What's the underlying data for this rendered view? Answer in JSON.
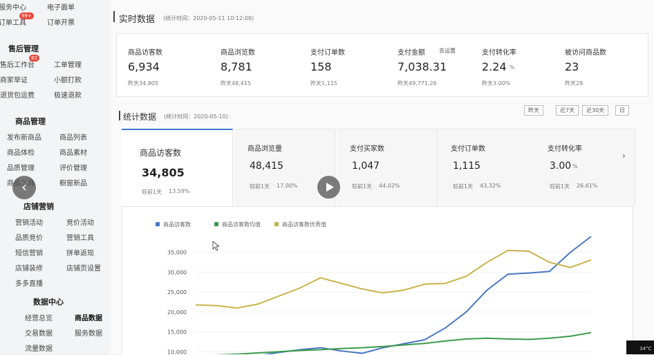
{
  "sidebar": {
    "top": [
      {
        "label": "服务中心"
      },
      {
        "label": "电子面单"
      },
      {
        "label": "订单工具",
        "badge": "99+"
      },
      {
        "label": "订单开票"
      }
    ],
    "sections": [
      {
        "title": "售后管理",
        "items": [
          {
            "label": "售后工作台",
            "badge": "82"
          },
          {
            "label": "工单管理"
          },
          {
            "label": "商家举证"
          },
          {
            "label": "小额打款"
          },
          {
            "label": "退货包运费"
          },
          {
            "label": "极速退款"
          }
        ]
      },
      {
        "title": "商品管理",
        "items": [
          {
            "label": "发布新商品"
          },
          {
            "label": "商品列表"
          },
          {
            "label": "商品体检"
          },
          {
            "label": "商品素材"
          },
          {
            "label": "品质管理"
          },
          {
            "label": "评价管理"
          },
          {
            "label": "商品工具"
          },
          {
            "label": "橱窗新品"
          }
        ]
      },
      {
        "title": "店铺营销",
        "items": [
          {
            "label": "营销活动"
          },
          {
            "label": "竞价活动"
          },
          {
            "label": "品质竞价"
          },
          {
            "label": "营销工具"
          },
          {
            "label": "短信营销"
          },
          {
            "label": "拼单返现"
          },
          {
            "label": "店铺装修"
          },
          {
            "label": "店铺页设置"
          },
          {
            "label": "多多直播"
          }
        ]
      },
      {
        "title": "数据中心",
        "items": [
          {
            "label": "经营总览"
          },
          {
            "label": "商品数据"
          },
          {
            "label": "交易数据"
          },
          {
            "label": "服务数据"
          },
          {
            "label": "流量数据"
          }
        ]
      }
    ]
  },
  "realtime": {
    "title": "实时数据",
    "time": "(统计时间：2020-05-11 10:12:08)",
    "cards": [
      {
        "label": "商品访客数",
        "value": "6,934",
        "prev": "昨天34,805"
      },
      {
        "label": "商品浏览数",
        "value": "8,781",
        "prev": "昨天48,415"
      },
      {
        "label": "支付订单数",
        "value": "158",
        "prev": "昨天1,115"
      },
      {
        "label": "支付金额",
        "link": "去设置",
        "value": "7,038.31",
        "prev": "昨天49,771.26"
      },
      {
        "label": "支付转化率",
        "value": "2.24",
        "unit": "%",
        "prev": "昨天3.00%"
      },
      {
        "label": "被访问商品数",
        "value": "23",
        "prev": "昨天28"
      }
    ]
  },
  "stats": {
    "title": "统计数据",
    "time": "(统计时间：2020-05-10)",
    "buttons": [
      "昨天",
      "近7天",
      "近30天",
      "日"
    ],
    "cards": [
      {
        "label": "商品访客数",
        "value": "34,805",
        "compare": "较前1天",
        "change": "13.59%"
      },
      {
        "label": "商品浏览量",
        "value": "48,415",
        "compare": "较前1天",
        "change": "17.00%"
      },
      {
        "label": "支付买家数",
        "value": "1,047",
        "compare": "较前1天",
        "change": "44.02%"
      },
      {
        "label": "支付订单数",
        "value": "1,115",
        "compare": "较前1天",
        "change": "43.32%"
      },
      {
        "label": "支付转化率",
        "value": "3.00",
        "unit": "%",
        "compare": "较前1天",
        "change": "26.61%"
      }
    ]
  },
  "status": {
    "temperature": "34°C"
  },
  "chart_data": {
    "type": "line",
    "categories": [
      null,
      null,
      null,
      null,
      null,
      null,
      null,
      null,
      null,
      null,
      null,
      null,
      null,
      null,
      null,
      null,
      null,
      null,
      null,
      null
    ],
    "series": [
      {
        "name": "商品访客数",
        "color": "#4a78c2",
        "values": [
          9000,
          9000,
          9000,
          9000,
          9800,
          10500,
          11000,
          10200,
          9600,
          11000,
          12000,
          13000,
          16000,
          20000,
          25500,
          29500,
          29800,
          30200,
          35000,
          39000
        ]
      },
      {
        "name": "商品访客数均值",
        "color": "#3a9a4a",
        "values": [
          9000,
          9200,
          9400,
          9700,
          10000,
          10300,
          10500,
          10800,
          11000,
          11300,
          11700,
          12100,
          12700,
          13200,
          13400,
          13200,
          13100,
          13400,
          13900,
          14800
        ]
      },
      {
        "name": "商品访客数优秀值",
        "color": "#c8b44a",
        "values": [
          21800,
          21600,
          21000,
          22000,
          24000,
          26000,
          28600,
          27200,
          25800,
          24800,
          25500,
          27000,
          27200,
          29000,
          32500,
          35500,
          35300,
          32500,
          31200,
          33100
        ]
      }
    ],
    "ylim": [
      9000,
      40000
    ],
    "yticks": [
      {
        "value": 10000,
        "label": "10,000"
      },
      {
        "value": 15000,
        "label": "15,000"
      },
      {
        "value": 20000,
        "label": "20,000"
      },
      {
        "value": 25000,
        "label": "25,000"
      },
      {
        "value": 30000,
        "label": "30,000"
      },
      {
        "value": 35000,
        "label": "35,000"
      }
    ],
    "grid": true
  }
}
